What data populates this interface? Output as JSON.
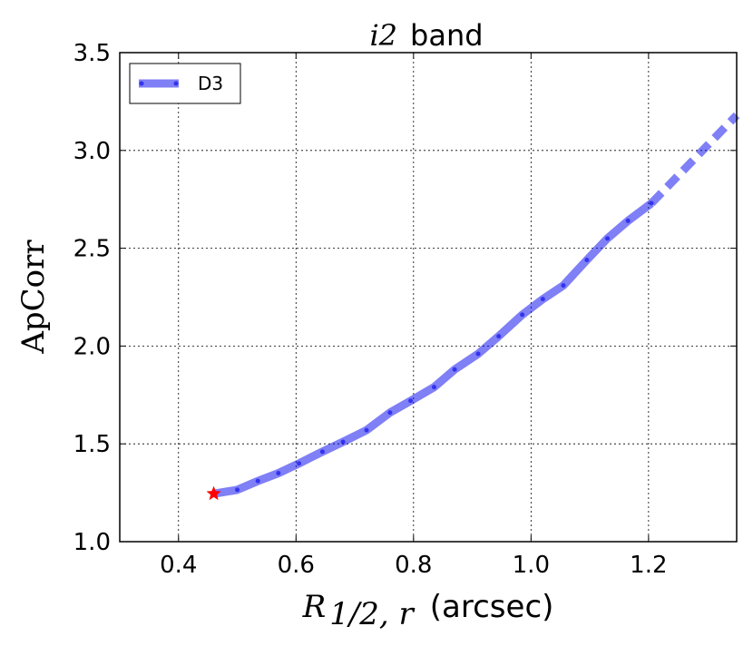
{
  "chart_data": {
    "type": "line",
    "title_math": "i2",
    "title_rest": "band",
    "xlabel_math": "R",
    "xlabel_sub": "1/2, r",
    "xlabel_rest": "(arcsec)",
    "ylabel": "ApCorr",
    "xlim": [
      0.3,
      1.35
    ],
    "ylim": [
      1.0,
      3.5
    ],
    "xticks": [
      "0.4",
      "0.6",
      "0.8",
      "1.0",
      "1.2"
    ],
    "yticks": [
      "1.0",
      "1.5",
      "2.0",
      "2.5",
      "3.0",
      "3.5"
    ],
    "grid": true,
    "legend_position": "upper-left",
    "series": [
      {
        "name": "D3",
        "color": "#0000ee",
        "x": [
          0.46,
          0.5,
          0.535,
          0.57,
          0.605,
          0.645,
          0.68,
          0.72,
          0.76,
          0.795,
          0.835,
          0.87,
          0.91,
          0.945,
          0.985,
          1.02,
          1.055,
          1.095,
          1.13,
          1.165,
          1.205
        ],
        "y": [
          1.245,
          1.265,
          1.31,
          1.35,
          1.4,
          1.46,
          1.51,
          1.57,
          1.66,
          1.72,
          1.79,
          1.88,
          1.96,
          2.05,
          2.16,
          2.24,
          2.31,
          2.44,
          2.55,
          2.64,
          2.73
        ]
      }
    ],
    "extrapolation": {
      "style": "dashed",
      "x": [
        1.205,
        1.35
      ],
      "y": [
        2.73,
        3.18
      ]
    },
    "marker": {
      "shape": "star",
      "color": "#ff0000",
      "x": 0.46,
      "y": 1.245
    }
  }
}
